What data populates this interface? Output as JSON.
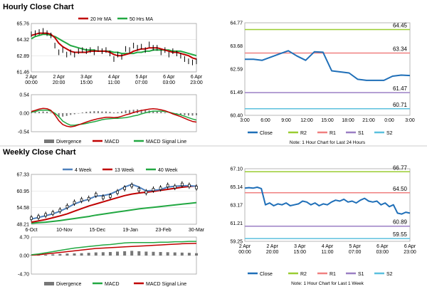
{
  "sections": {
    "hourly_title": "Hourly Close Chart",
    "weekly_title": "Weekly Close Chart"
  },
  "colors": {
    "price": "#000000",
    "ma_short": "#c00000",
    "ma_long": "#22a842",
    "divergence": "#777777",
    "macd": "#c00000",
    "signal": "#22a842",
    "close_line": "#1f6fb8",
    "R2": "#9acd32",
    "R1": "#f08080",
    "S1": "#9b7fc4",
    "S2": "#5bc0de",
    "ma_4w": "#4f81bd"
  },
  "chart_data": [
    {
      "id": "hourly_price",
      "type": "line",
      "title": "",
      "legend": [
        "20 Hr MA",
        "50 Hrs MA"
      ],
      "ylim": [
        61.46,
        65.76
      ],
      "yticks": [
        "65.76",
        "64.32",
        "62.89",
        "61.46"
      ],
      "xticks": [
        "2 Apr\n00:00",
        "2 Apr\n20:00",
        "3 Apr\n15:00",
        "4 Apr\n11:00",
        "5 Apr\n07:00",
        "6 Apr\n03:00",
        "6 Apr\n23:00"
      ],
      "series": [
        {
          "name": "Close",
          "values": [
            64.8,
            64.9,
            65.0,
            65.1,
            64.9,
            64.7,
            63.8,
            63.2,
            63.4,
            63.0,
            63.2,
            63.0,
            63.3,
            63.4,
            63.3,
            63.4,
            63.2,
            63.5,
            63.3,
            63.4,
            63.1,
            62.6,
            63.0,
            62.8,
            63.5,
            63.4,
            63.8,
            63.6,
            63.7,
            63.4,
            63.9,
            63.6,
            63.6,
            63.2,
            63.4,
            63.0,
            63.3,
            63.1,
            62.9,
            62.6,
            62.4,
            62.3,
            62.4
          ]
        },
        {
          "name": "20 Hr MA",
          "values": [
            64.7,
            64.8,
            64.9,
            64.9,
            64.9,
            64.8,
            64.5,
            64.0,
            63.7,
            63.5,
            63.3,
            63.2,
            63.2,
            63.2,
            63.2,
            63.3,
            63.3,
            63.3,
            63.3,
            63.3,
            63.2,
            63.0,
            62.9,
            62.9,
            63.0,
            63.1,
            63.3,
            63.4,
            63.5,
            63.5,
            63.6,
            63.6,
            63.6,
            63.5,
            63.4,
            63.3,
            63.2,
            63.2,
            63.1,
            63.0,
            62.9,
            62.7,
            62.6
          ]
        },
        {
          "name": "50 Hrs MA",
          "values": [
            64.4,
            64.6,
            64.7,
            64.8,
            64.8,
            64.7,
            64.6,
            64.4,
            64.2,
            64.0,
            63.8,
            63.7,
            63.6,
            63.5,
            63.4,
            63.4,
            63.4,
            63.3,
            63.3,
            63.3,
            63.3,
            63.2,
            63.2,
            63.1,
            63.1,
            63.1,
            63.1,
            63.2,
            63.2,
            63.3,
            63.3,
            63.4,
            63.4,
            63.4,
            63.4,
            63.4,
            63.3,
            63.3,
            63.3,
            63.2,
            63.1,
            63.0,
            62.9
          ]
        }
      ]
    },
    {
      "id": "hourly_macd",
      "type": "line",
      "title": "",
      "ylim": [
        -0.54,
        0.54
      ],
      "yticks": [
        "0.54",
        "0.00",
        "-0.54"
      ],
      "legend": [
        "Divergence",
        "MACD",
        "MACD Signal Line"
      ],
      "series": [
        {
          "name": "Divergence",
          "values": [
            0.02,
            0.03,
            0.04,
            0.05,
            0.04,
            0.02,
            -0.05,
            -0.12,
            -0.1,
            -0.08,
            -0.05,
            -0.03,
            -0.01,
            0.02,
            0.04,
            0.05,
            0.06,
            0.06,
            0.05,
            0.05,
            0.04,
            0.02,
            0.03,
            0.05,
            0.08,
            0.09,
            0.1,
            0.11,
            0.1,
            0.09,
            0.08,
            0.07,
            0.06,
            0.04,
            0.02,
            0.0,
            -0.02,
            -0.03,
            -0.05,
            -0.06,
            -0.07,
            -0.07,
            -0.06
          ]
        },
        {
          "name": "MACD",
          "values": [
            0.05,
            0.08,
            0.12,
            0.14,
            0.13,
            0.08,
            -0.05,
            -0.22,
            -0.33,
            -0.38,
            -0.4,
            -0.38,
            -0.34,
            -0.3,
            -0.26,
            -0.22,
            -0.19,
            -0.16,
            -0.14,
            -0.12,
            -0.12,
            -0.13,
            -0.12,
            -0.09,
            -0.05,
            -0.02,
            0.02,
            0.05,
            0.08,
            0.1,
            0.12,
            0.13,
            0.12,
            0.1,
            0.07,
            0.03,
            -0.02,
            -0.06,
            -0.1,
            -0.15,
            -0.2,
            -0.24,
            -0.26
          ]
        },
        {
          "name": "MACD Signal Line",
          "values": [
            0.03,
            0.05,
            0.08,
            0.09,
            0.09,
            0.06,
            0.0,
            -0.1,
            -0.23,
            -0.3,
            -0.35,
            -0.35,
            -0.33,
            -0.32,
            -0.3,
            -0.27,
            -0.25,
            -0.22,
            -0.19,
            -0.17,
            -0.16,
            -0.15,
            -0.15,
            -0.14,
            -0.13,
            -0.11,
            -0.08,
            -0.06,
            -0.02,
            0.01,
            0.04,
            0.06,
            0.06,
            0.06,
            0.05,
            0.03,
            0.0,
            -0.03,
            -0.05,
            -0.09,
            -0.13,
            -0.17,
            -0.2
          ]
        }
      ]
    },
    {
      "id": "hourly_pivot",
      "type": "line",
      "title": "",
      "ylim": [
        60.4,
        64.77
      ],
      "yticks": [
        "64.77",
        "63.68",
        "62.59",
        "61.49",
        "60.40"
      ],
      "xticks": [
        "3:00",
        "6:00",
        "9:00",
        "12:00",
        "15:00",
        "18:00",
        "21:00",
        "0:00",
        "3:00"
      ],
      "levels": {
        "R2": 64.45,
        "R1": 63.34,
        "S1": 61.47,
        "S2": 60.71
      },
      "level_labels": [
        "64.45",
        "63.34",
        "61.47",
        "60.71"
      ],
      "legend": [
        "Close",
        "R2",
        "R1",
        "S1",
        "S2"
      ],
      "note": "Note: 1 Hour Chart for Last 24 Hours",
      "series": [
        {
          "name": "Close",
          "values": [
            63.05,
            63.05,
            63.0,
            63.15,
            63.3,
            63.45,
            63.2,
            63.0,
            63.4,
            63.38,
            62.5,
            62.45,
            62.4,
            62.1,
            62.05,
            62.05,
            62.05,
            62.25,
            62.3,
            62.28
          ]
        }
      ]
    },
    {
      "id": "weekly_price",
      "type": "line",
      "title": "",
      "legend": [
        "4 Week",
        "13 Week",
        "40 Week"
      ],
      "ylim": [
        48.21,
        67.33
      ],
      "yticks": [
        "67.33",
        "60.95",
        "54.58",
        "48.21"
      ],
      "xticks": [
        "6-Oct",
        "10-Nov",
        "15-Dec",
        "19-Jan",
        "23-Feb",
        "30-Mar"
      ],
      "series": [
        {
          "name": "Close",
          "values": [
            50.5,
            51.0,
            51.8,
            52.5,
            53.5,
            55.0,
            56.5,
            57.5,
            58.0,
            59.5,
            58.5,
            59.0,
            60.5,
            62.0,
            63.0,
            61.5,
            60.5,
            61.5,
            62.0,
            63.0,
            62.5,
            63.5,
            63.0,
            62.3
          ]
        },
        {
          "name": "4 Week",
          "values": [
            50.2,
            50.8,
            51.5,
            52.2,
            53.2,
            54.5,
            56.0,
            57.0,
            57.8,
            59.0,
            59.2,
            59.8,
            61.0,
            62.5,
            63.5,
            62.5,
            61.0,
            61.2,
            61.5,
            62.5,
            62.8,
            63.0,
            63.0,
            62.8
          ]
        },
        {
          "name": "13 Week",
          "values": [
            49.0,
            49.5,
            50.0,
            50.7,
            51.4,
            52.2,
            53.2,
            54.2,
            55.2,
            56.0,
            56.8,
            57.6,
            58.4,
            59.2,
            59.8,
            60.2,
            60.5,
            60.8,
            61.2,
            61.6,
            62.0,
            62.4,
            62.7,
            62.9
          ]
        },
        {
          "name": "40 Week",
          "values": [
            48.6,
            48.8,
            49.0,
            49.3,
            49.6,
            50.0,
            50.4,
            50.8,
            51.2,
            51.7,
            52.1,
            52.5,
            52.9,
            53.3,
            53.7,
            54.1,
            54.4,
            54.7,
            55.0,
            55.3,
            55.6,
            55.9,
            56.2,
            56.5
          ]
        }
      ]
    },
    {
      "id": "weekly_macd",
      "type": "line",
      "title": "",
      "ylim": [
        -4.7,
        4.7
      ],
      "yticks": [
        "4.70",
        "0.00",
        "-4.70"
      ],
      "legend": [
        "Divergence",
        "MACD",
        "MACD Signal Line"
      ],
      "series": [
        {
          "name": "Divergence",
          "values": [
            0.1,
            0.15,
            0.2,
            0.3,
            0.4,
            0.5,
            0.55,
            0.6,
            0.7,
            0.8,
            0.85,
            0.9,
            1.0,
            1.1,
            1.2,
            1.1,
            1.0,
            0.95,
            0.9,
            0.85,
            0.8,
            0.75,
            0.7,
            0.6
          ]
        },
        {
          "name": "MACD",
          "values": [
            0.2,
            0.4,
            0.7,
            1.0,
            1.3,
            1.6,
            1.9,
            2.1,
            2.3,
            2.5,
            2.7,
            2.8,
            3.0,
            3.2,
            3.3,
            3.3,
            3.3,
            3.3,
            3.4,
            3.4,
            3.5,
            3.5,
            3.6,
            3.6
          ]
        },
        {
          "name": "MACD Signal Line",
          "values": [
            0.1,
            0.2,
            0.4,
            0.6,
            0.8,
            1.0,
            1.2,
            1.4,
            1.6,
            1.8,
            1.9,
            2.0,
            2.1,
            2.2,
            2.3,
            2.4,
            2.5,
            2.6,
            2.7,
            2.8,
            2.9,
            3.0,
            3.05,
            3.1
          ]
        }
      ]
    },
    {
      "id": "weekly_pivot",
      "type": "line",
      "title": "",
      "ylim": [
        59.25,
        67.1
      ],
      "yticks": [
        "67.10",
        "65.14",
        "63.17",
        "61.21",
        "59.25"
      ],
      "xticks": [
        "2 Apr\n00:00",
        "2 Apr\n20:00",
        "3 Apr\n15:00",
        "4 Apr\n11:00",
        "5 Apr\n07:00",
        "6 Apr\n03:00",
        "6 Apr\n23:00"
      ],
      "levels": {
        "R2": 66.77,
        "R1": 64.5,
        "S1": 60.89,
        "S2": 59.55
      },
      "level_labels": [
        "66.77",
        "64.50",
        "60.89",
        "59.55"
      ],
      "legend": [
        "Close",
        "R2",
        "R1",
        "S1",
        "S2"
      ],
      "note": "Note: 1 Hour Chart for Last 1 Week",
      "series": [
        {
          "name": "Close",
          "values": [
            65.0,
            65.05,
            65.0,
            65.1,
            64.95,
            63.2,
            63.4,
            63.1,
            63.3,
            63.2,
            63.4,
            63.1,
            63.2,
            63.3,
            63.6,
            63.5,
            63.2,
            63.4,
            63.1,
            63.3,
            63.2,
            63.5,
            63.7,
            63.6,
            63.8,
            63.5,
            63.6,
            63.4,
            63.7,
            63.9,
            63.6,
            63.5,
            63.6,
            63.2,
            63.4,
            63.0,
            63.2,
            62.3,
            62.2,
            62.4,
            62.3
          ]
        }
      ]
    }
  ]
}
